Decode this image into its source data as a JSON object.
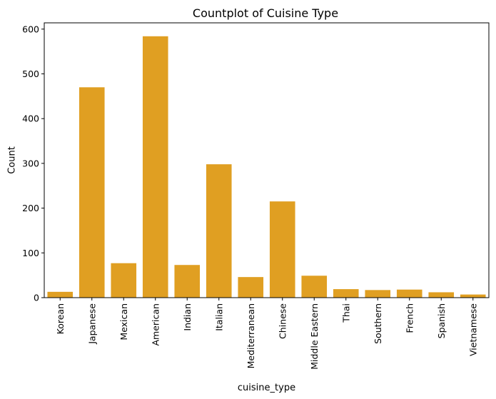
{
  "chart_data": {
    "type": "bar",
    "title": "Countplot of Cuisine Type",
    "xlabel": "cuisine_type",
    "ylabel": "Count",
    "categories": [
      "Korean",
      "Japanese",
      "Mexican",
      "American",
      "Indian",
      "Italian",
      "Mediterranean",
      "Chinese",
      "Middle Eastern",
      "Thai",
      "Southern",
      "French",
      "Spanish",
      "Vietnamese"
    ],
    "values": [
      13,
      470,
      77,
      584,
      73,
      298,
      46,
      215,
      49,
      19,
      17,
      18,
      12,
      7
    ],
    "ylim": [
      0,
      614
    ],
    "yticks": [
      0,
      100,
      200,
      300,
      400,
      500,
      600
    ],
    "bar_color": "#e09f22",
    "grid": false,
    "legend": "none"
  }
}
